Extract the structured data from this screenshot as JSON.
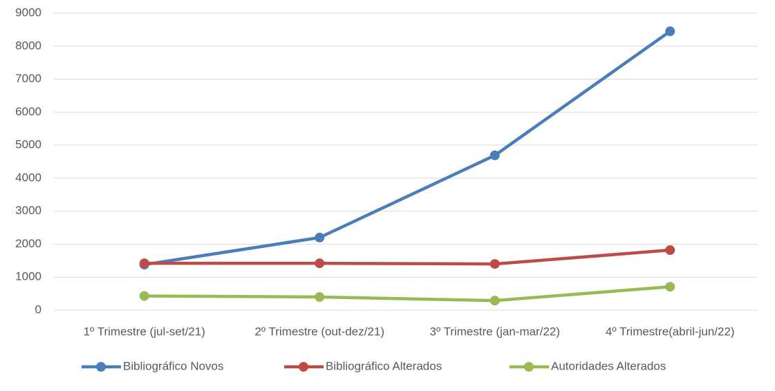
{
  "chart_data": {
    "type": "line",
    "categories": [
      "1º Trimestre (jul-set/21)",
      "2º Trimestre (out-dez/21)",
      "3º Trimestre (jan-mar/22)",
      "4º Trimestre(abril-jun/22)"
    ],
    "series": [
      {
        "name": "Bibliográfico Novos",
        "color": "#4a7ebb",
        "values": [
          1380,
          2200,
          4690,
          8450
        ]
      },
      {
        "name": "Bibliográfico Alterados",
        "color": "#be4b48",
        "values": [
          1420,
          1420,
          1400,
          1820
        ]
      },
      {
        "name": "Autoridades Alterados",
        "color": "#98b954",
        "values": [
          430,
          400,
          290,
          710
        ]
      }
    ],
    "ylim": [
      0,
      9000
    ],
    "yticks": [
      0,
      1000,
      2000,
      3000,
      4000,
      5000,
      6000,
      7000,
      8000,
      9000
    ],
    "grid": true,
    "legend": "bottom"
  }
}
